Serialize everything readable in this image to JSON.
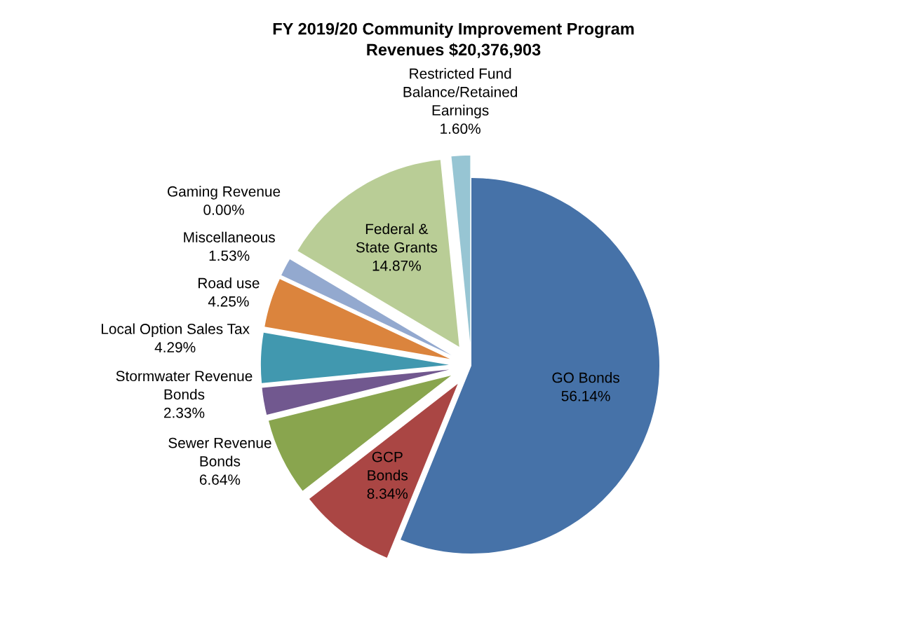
{
  "chart_data": {
    "type": "pie",
    "title": "FY 2019/20 Community Improvement Program\nRevenues $20,376,903",
    "categories": [
      "GO Bonds",
      "GCP\nBonds",
      "Sewer Revenue\nBonds",
      "Stormwater Revenue\nBonds",
      "Local Option Sales Tax",
      "Road use",
      "Miscellaneous",
      "Gaming Revenue",
      "Federal &\nState Grants",
      "Restricted Fund\nBalance/Retained\nEarnings"
    ],
    "values": [
      56.14,
      8.34,
      6.64,
      2.33,
      4.29,
      4.25,
      1.53,
      0.0,
      14.87,
      1.6
    ],
    "value_labels": [
      "56.14%",
      "8.34%",
      "6.64%",
      "2.33%",
      "4.29%",
      "4.25%",
      "1.53%",
      "0.00%",
      "14.87%",
      "1.60%"
    ],
    "colors": [
      "#4672a8",
      "#aa4644",
      "#89a54e",
      "#71588f",
      "#4198af",
      "#db843d",
      "#93a9cf",
      "#d19392",
      "#b9cd96",
      "#97c5d3"
    ],
    "legend": false
  }
}
